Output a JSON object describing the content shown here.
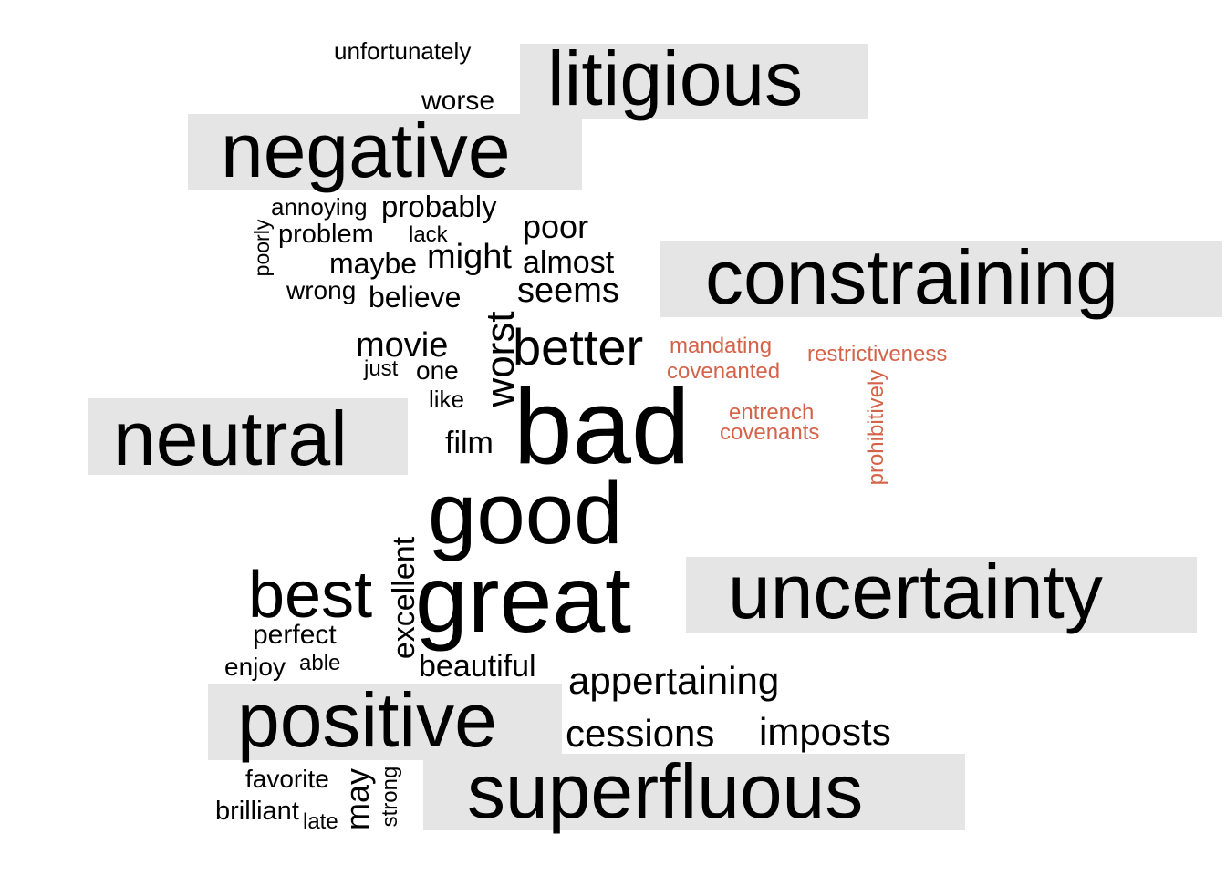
{
  "colors": {
    "word": "#000000",
    "highlight": "#d4634a",
    "box": "#e5e5e5"
  },
  "categories": [
    {
      "id": "litigious",
      "label": "litigious"
    },
    {
      "id": "negative",
      "label": "negative"
    },
    {
      "id": "constraining",
      "label": "constraining"
    },
    {
      "id": "neutral",
      "label": "neutral"
    },
    {
      "id": "uncertainty",
      "label": "uncertainty"
    },
    {
      "id": "positive",
      "label": "positive"
    },
    {
      "id": "superfluous",
      "label": "superfluous"
    }
  ],
  "words": [
    {
      "id": "unfortunately",
      "text": "unfortunately",
      "color": "word"
    },
    {
      "id": "worse",
      "text": "worse",
      "color": "word"
    },
    {
      "id": "annoying",
      "text": "annoying",
      "color": "word"
    },
    {
      "id": "probably",
      "text": "probably",
      "color": "word"
    },
    {
      "id": "poor",
      "text": "poor",
      "color": "word"
    },
    {
      "id": "poorly",
      "text": "poorly",
      "color": "word",
      "vertical": true
    },
    {
      "id": "problem",
      "text": "problem",
      "color": "word"
    },
    {
      "id": "lack",
      "text": "lack",
      "color": "word"
    },
    {
      "id": "might",
      "text": "might",
      "color": "word"
    },
    {
      "id": "almost",
      "text": "almost",
      "color": "word"
    },
    {
      "id": "maybe",
      "text": "maybe",
      "color": "word"
    },
    {
      "id": "wrong",
      "text": "wrong",
      "color": "word"
    },
    {
      "id": "believe",
      "text": "believe",
      "color": "word"
    },
    {
      "id": "seems",
      "text": "seems",
      "color": "word"
    },
    {
      "id": "movie",
      "text": "movie",
      "color": "word"
    },
    {
      "id": "worst",
      "text": "worst",
      "color": "word",
      "vertical": true
    },
    {
      "id": "better",
      "text": "better",
      "color": "word"
    },
    {
      "id": "mandating",
      "text": "mandating",
      "color": "highlight"
    },
    {
      "id": "restrictiveness",
      "text": "restrictiveness",
      "color": "highlight"
    },
    {
      "id": "just",
      "text": "just",
      "color": "word"
    },
    {
      "id": "one",
      "text": "one",
      "color": "word"
    },
    {
      "id": "covenanted",
      "text": "covenanted",
      "color": "highlight"
    },
    {
      "id": "like",
      "text": "like",
      "color": "word"
    },
    {
      "id": "prohibitively",
      "text": "prohibitively",
      "color": "highlight",
      "vertical": true
    },
    {
      "id": "entrench",
      "text": "entrench",
      "color": "highlight"
    },
    {
      "id": "covenants",
      "text": "covenants",
      "color": "highlight"
    },
    {
      "id": "bad",
      "text": "bad",
      "color": "word"
    },
    {
      "id": "film",
      "text": "film",
      "color": "word"
    },
    {
      "id": "good",
      "text": "good",
      "color": "word"
    },
    {
      "id": "excellent",
      "text": "excellent",
      "color": "word",
      "vertical": true
    },
    {
      "id": "best",
      "text": "best",
      "color": "word"
    },
    {
      "id": "great",
      "text": "great",
      "color": "word"
    },
    {
      "id": "perfect",
      "text": "perfect",
      "color": "word"
    },
    {
      "id": "enjoy",
      "text": "enjoy",
      "color": "word"
    },
    {
      "id": "able",
      "text": "able",
      "color": "word"
    },
    {
      "id": "beautiful",
      "text": "beautiful",
      "color": "word"
    },
    {
      "id": "appertaining",
      "text": "appertaining",
      "color": "word"
    },
    {
      "id": "cessions",
      "text": "cessions",
      "color": "word"
    },
    {
      "id": "imposts",
      "text": "imposts",
      "color": "word"
    },
    {
      "id": "favorite",
      "text": "favorite",
      "color": "word"
    },
    {
      "id": "may",
      "text": "may",
      "color": "word",
      "vertical": true
    },
    {
      "id": "strong",
      "text": "strong",
      "color": "word",
      "vertical": true
    },
    {
      "id": "brilliant",
      "text": "brilliant",
      "color": "word"
    },
    {
      "id": "late",
      "text": "late",
      "color": "word"
    }
  ]
}
